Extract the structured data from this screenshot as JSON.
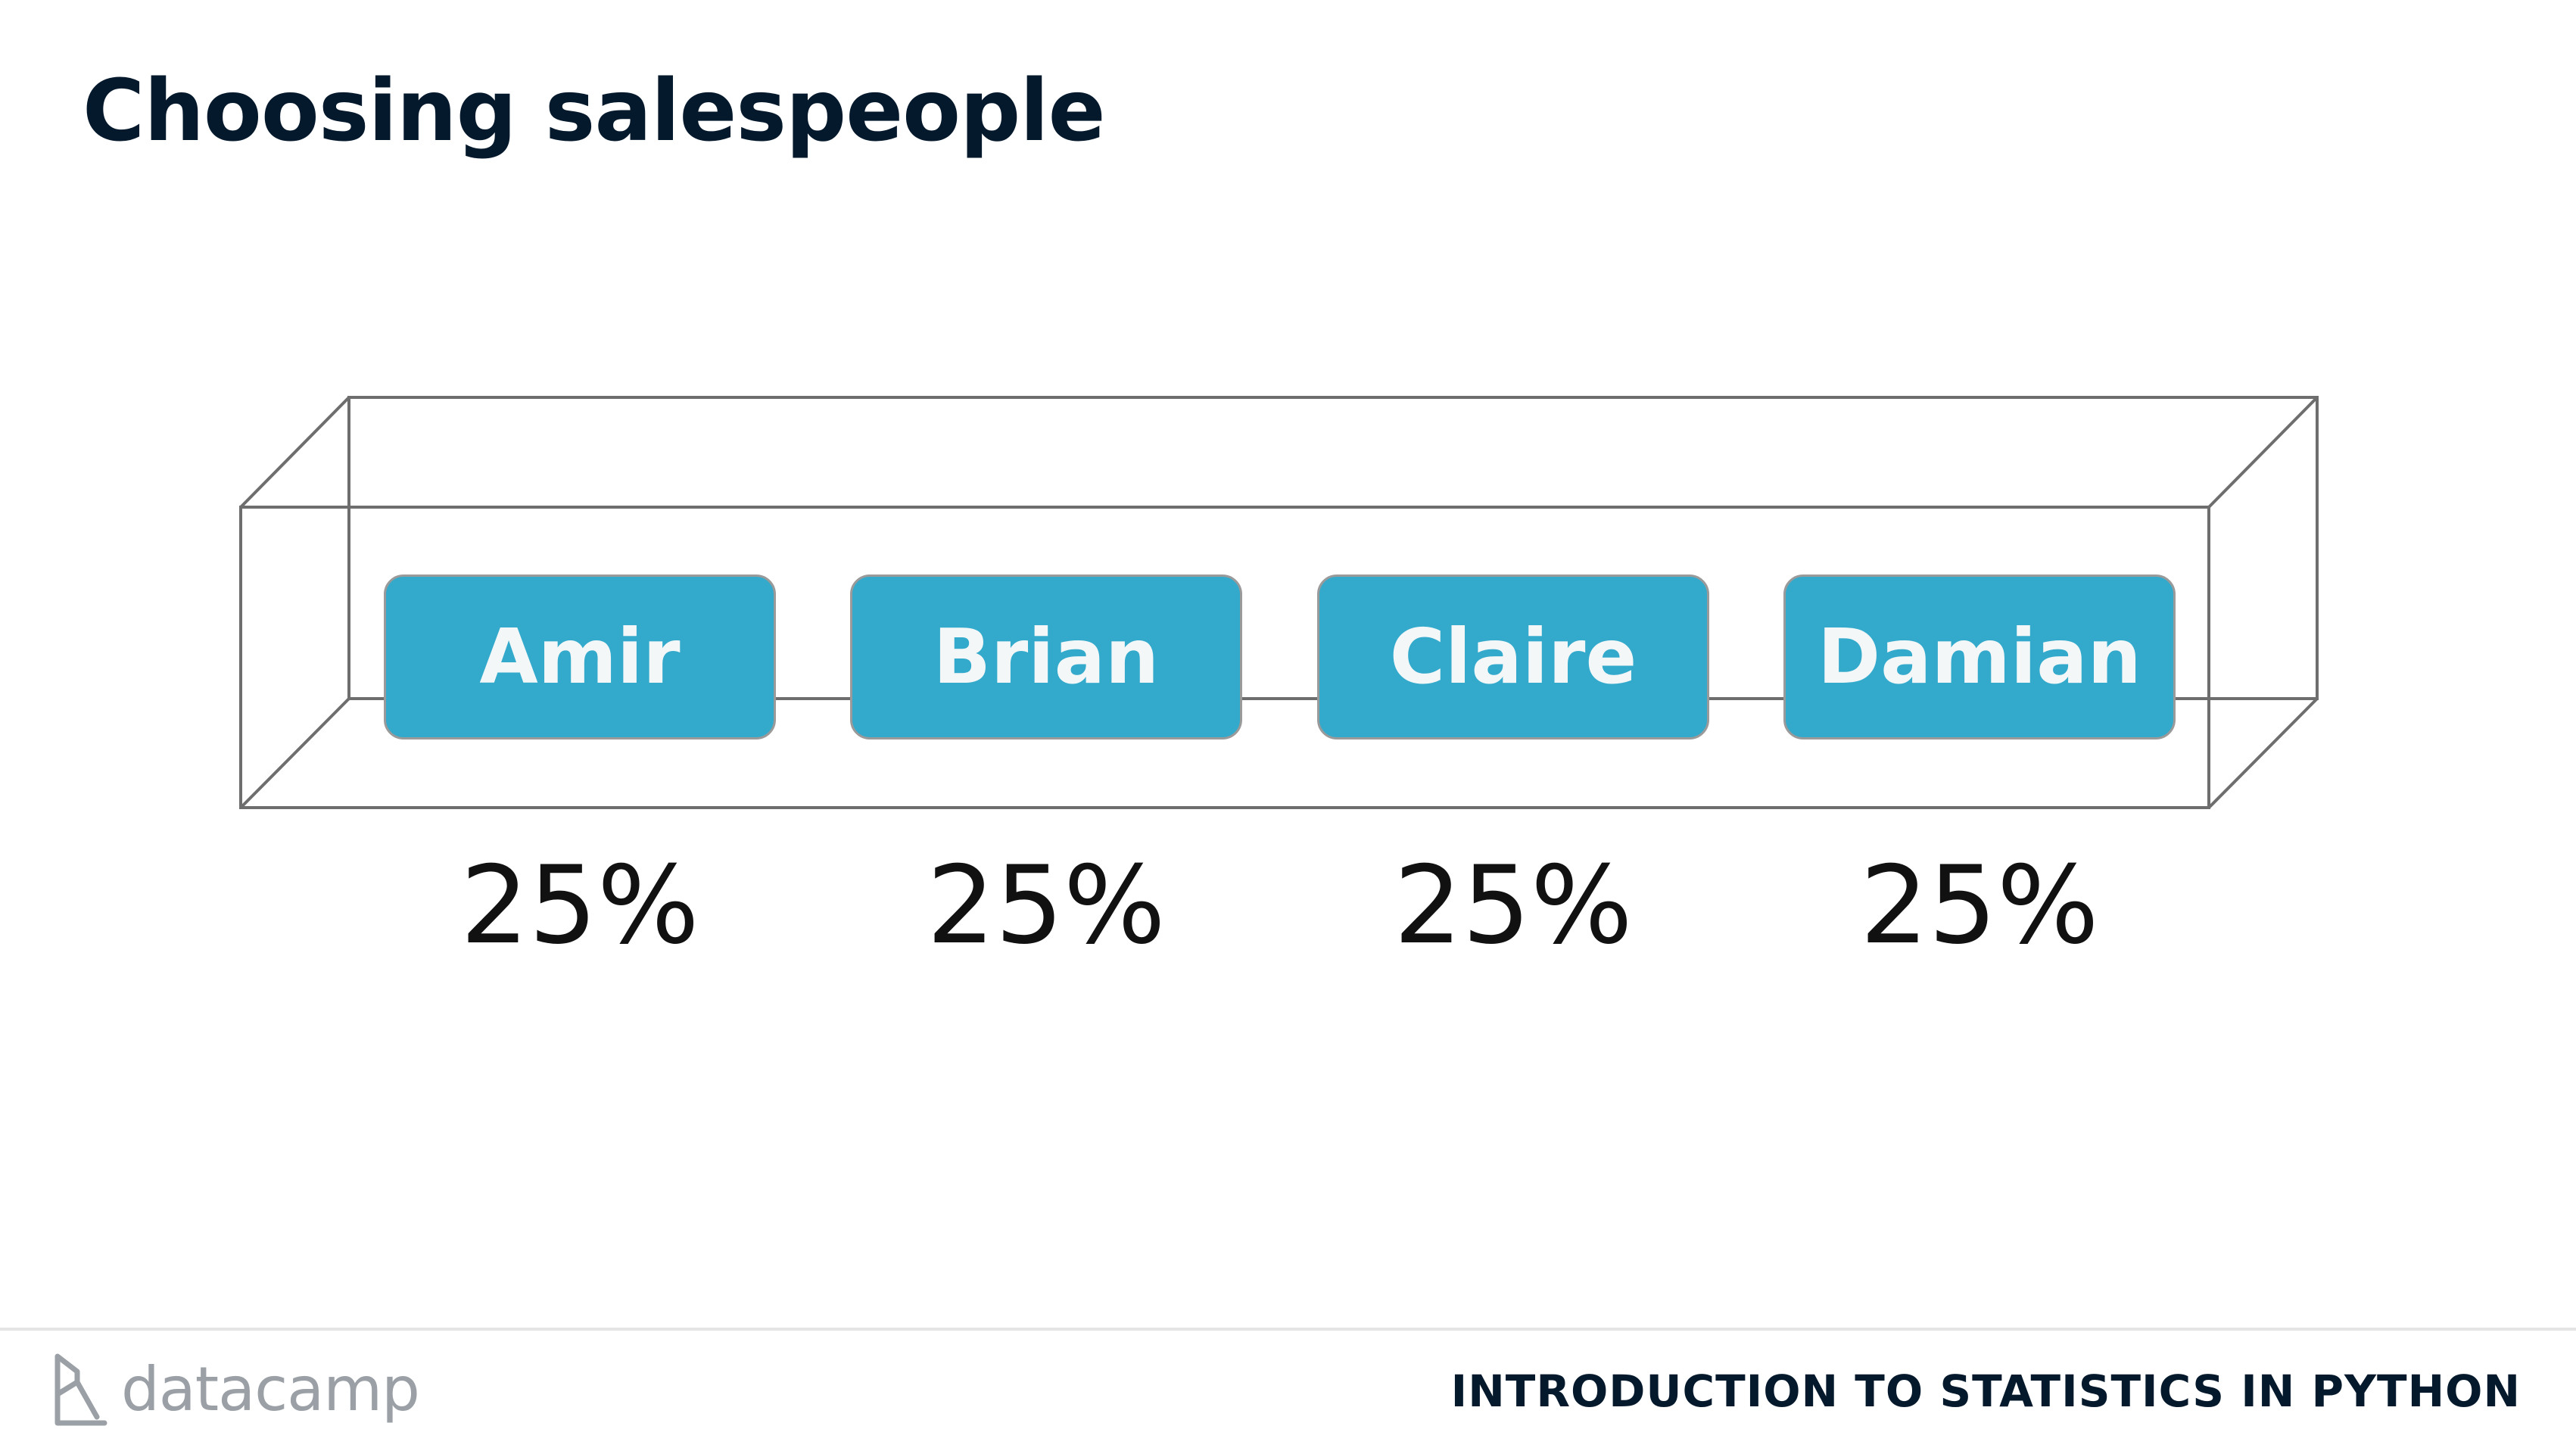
{
  "slide": {
    "title": "Choosing salespeople"
  },
  "salespeople": [
    {
      "name": "Amir",
      "probability": "25%"
    },
    {
      "name": "Brian",
      "probability": "25%"
    },
    {
      "name": "Claire",
      "probability": "25%"
    },
    {
      "name": "Damian",
      "probability": "25%"
    }
  ],
  "footer": {
    "logo_text": "datacamp",
    "course_title": "INTRODUCTION TO STATISTICS IN PYTHON"
  },
  "colors": {
    "title": "#05192d",
    "card_fill": "#33aacc",
    "card_text": "#f4f7f8",
    "box_lines": "#6e6e6e",
    "logo": "#9aa0a6"
  },
  "icons": {
    "logo": "datacamp-logo-icon"
  }
}
